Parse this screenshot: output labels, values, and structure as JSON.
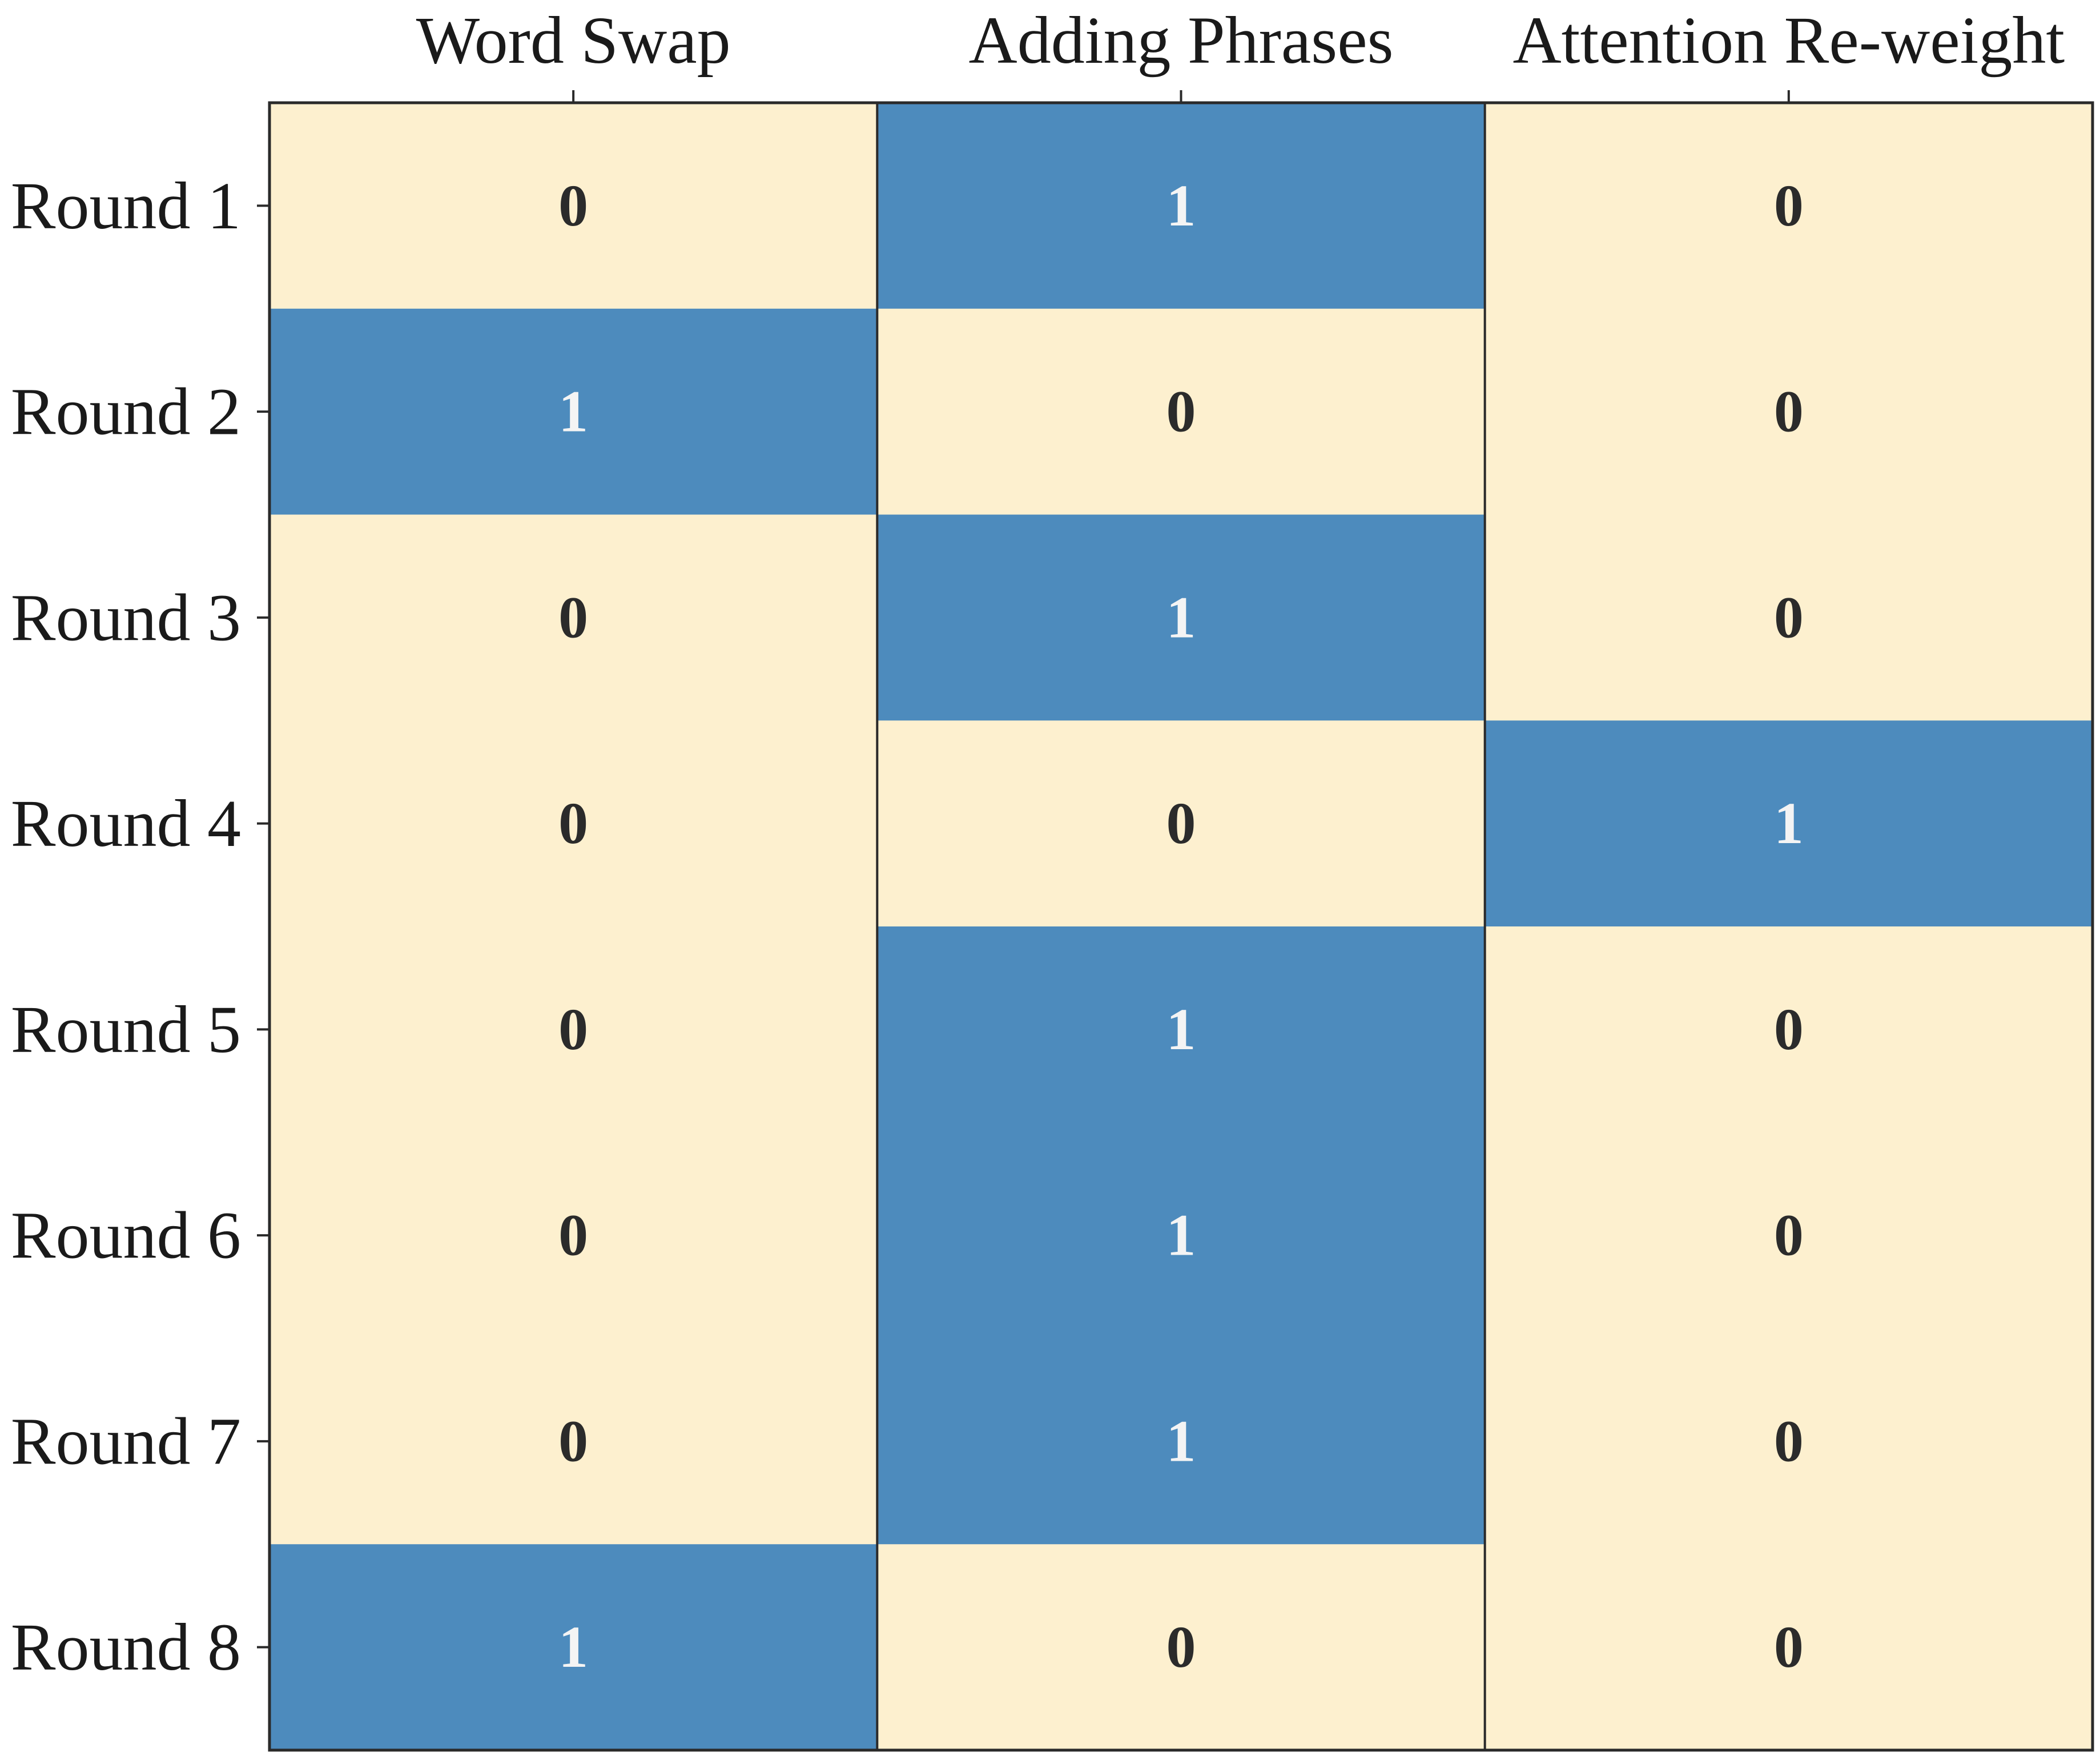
{
  "chart_data": {
    "type": "heatmap",
    "title": "",
    "xlabel": "",
    "ylabel": "",
    "x_categories": [
      "Word Swap",
      "Adding Phrases",
      "Attention Re-weight"
    ],
    "x_axis_position": "top",
    "y_categories": [
      "Round 1",
      "Round 2",
      "Round 3",
      "Round 4",
      "Round 5",
      "Round 6",
      "Round 7",
      "Round 8"
    ],
    "values": [
      [
        0,
        1,
        0
      ],
      [
        1,
        0,
        0
      ],
      [
        0,
        1,
        0
      ],
      [
        0,
        0,
        1
      ],
      [
        0,
        1,
        0
      ],
      [
        0,
        1,
        0
      ],
      [
        0,
        1,
        0
      ],
      [
        1,
        0,
        0
      ]
    ],
    "colors": {
      "0": "#fdf0cf",
      "1": "#4d8bbd"
    },
    "annotation_colors": {
      "0": "#2b2b2b",
      "1": "#f4f4f4"
    },
    "grid": false,
    "legend": "none"
  }
}
